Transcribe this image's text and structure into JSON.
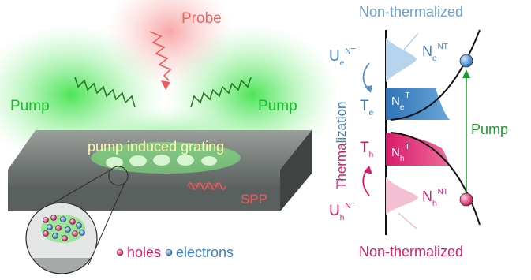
{
  "left": {
    "probe": "Probe",
    "pump_left": "Pump",
    "pump_right": "Pump",
    "grating": "pump induced grating",
    "spp": "SPP",
    "legend": {
      "holes": "holes",
      "electrons": "electrons"
    }
  },
  "right": {
    "top_title": "Non-thermalized",
    "bottom_title": "Non-thermalized",
    "pump": "Pump",
    "axis_label_main": "Therma",
    "axis_label_rest": "lization",
    "symbols": {
      "U": "U",
      "T": "T",
      "N": "N",
      "sub_e": "e",
      "sub_h": "h",
      "sup_NT": "NT",
      "sup_T": "T"
    }
  },
  "colors": {
    "pump_green": "#1fbf2a",
    "probe_red": "#f25a5a",
    "electron_blue": "#3b7fc0",
    "electron_light": "#9fc4e6",
    "hole_pink": "#d81b6a",
    "hole_light": "#f2b3c9"
  }
}
